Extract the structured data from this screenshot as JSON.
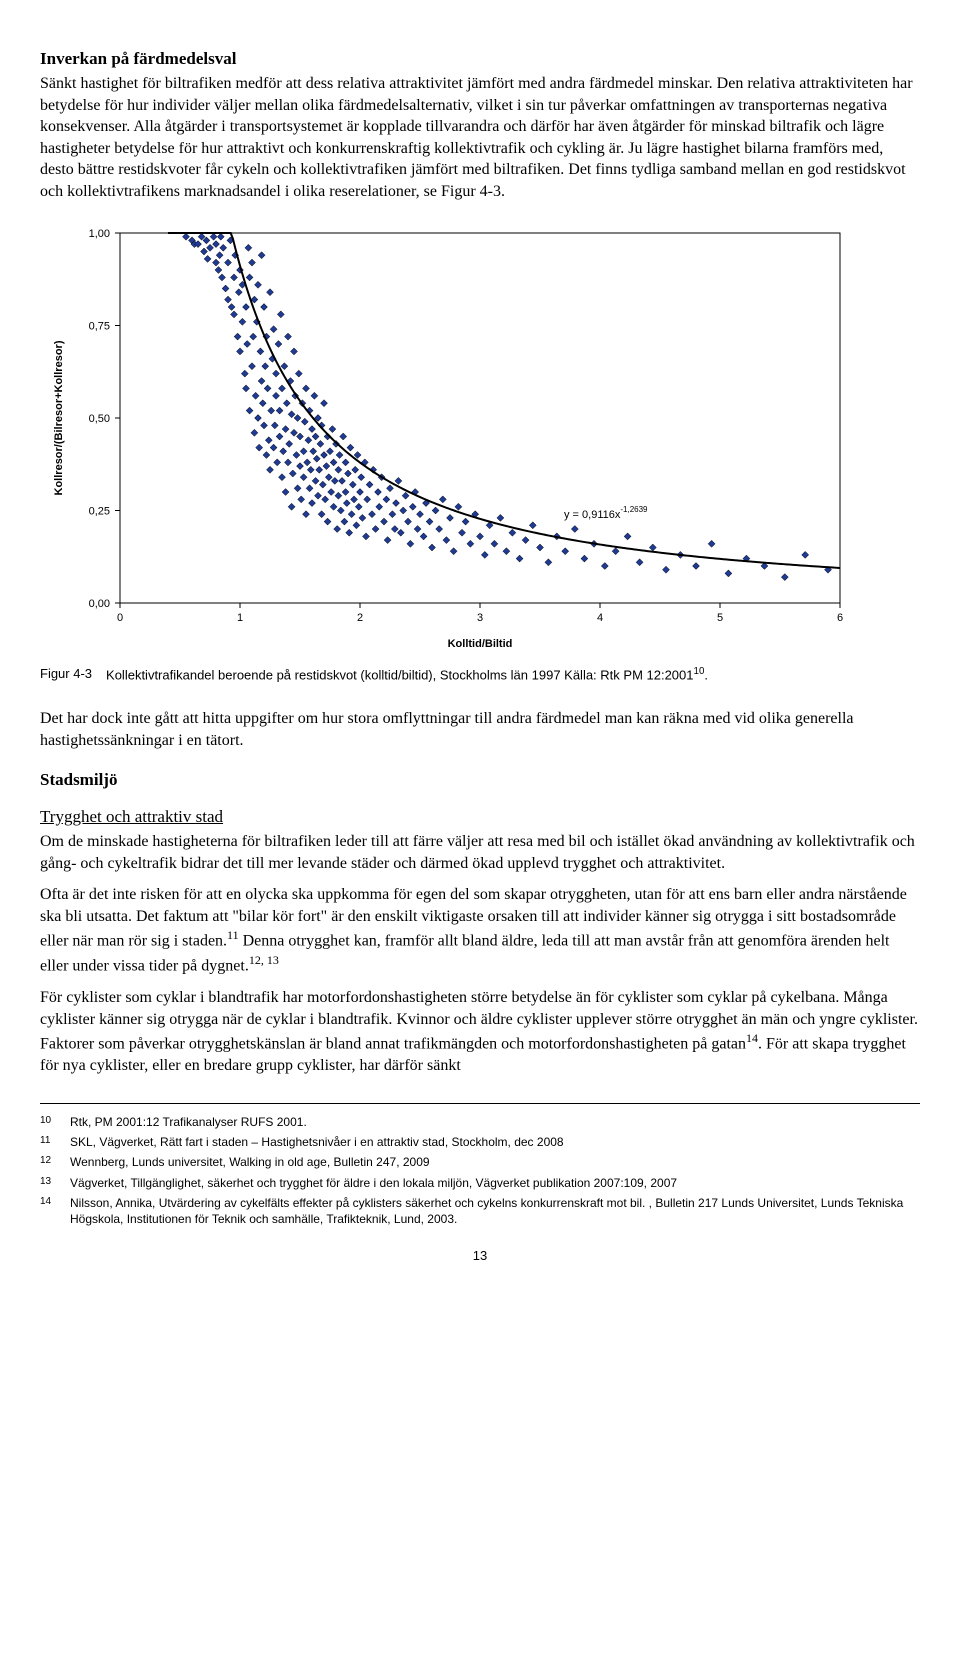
{
  "section1": {
    "heading": "Inverkan på färdmedelsval",
    "p1": "Sänkt hastighet för biltrafiken medför att dess relativa attraktivitet jämfört med andra färdmedel minskar. Den relativa attraktiviteten har betydelse för hur individer väljer mellan olika färdmedelsalternativ, vilket i sin tur påverkar omfattningen av transporternas negativa konsekvenser. Alla åtgärder i transportsystemet är kopplade tillvarandra och därför har även åtgärder för minskad biltrafik och lägre hastigheter betydelse för hur attraktivt och konkurrenskraftig kollektivtrafik och cykling är. Ju lägre hastighet bilarna framförs med, desto bättre restidskvoter får cykeln och kollektivtrafiken jämfört med biltrafiken. Det finns tydliga samband mellan en god restidskvot och kollektivtrafikens marknadsandel i olika reserelationer, se Figur 4-3."
  },
  "chart": {
    "type": "scatter",
    "xlabel": "Kolltid/Biltid",
    "ylabel": "Kollresor/(Bilresor+Kollresor)",
    "xlim": [
      0,
      6
    ],
    "ylim": [
      0,
      1.0
    ],
    "xticks": [
      0,
      1,
      2,
      3,
      4,
      5,
      6
    ],
    "yticks": [
      0.0,
      0.25,
      0.5,
      0.75,
      1.0
    ],
    "ytick_labels": [
      "0,00",
      "0,25",
      "0,50",
      "0,75",
      "1,00"
    ],
    "marker_color": "#1f3a93",
    "marker_border": "#000000",
    "curve_color": "#000000",
    "background": "#ffffff",
    "grid_color": "#d0d0d0",
    "label_fontsize": 11,
    "tick_fontsize": 11,
    "equation": "y = 0,9116x",
    "equation_exp": "-1,2639",
    "points": [
      [
        0.55,
        0.99
      ],
      [
        0.6,
        0.98
      ],
      [
        0.62,
        0.97
      ],
      [
        0.65,
        0.97
      ],
      [
        0.68,
        0.99
      ],
      [
        0.7,
        0.95
      ],
      [
        0.72,
        0.98
      ],
      [
        0.73,
        0.93
      ],
      [
        0.75,
        0.96
      ],
      [
        0.78,
        0.99
      ],
      [
        0.8,
        0.92
      ],
      [
        0.8,
        0.97
      ],
      [
        0.82,
        0.9
      ],
      [
        0.83,
        0.94
      ],
      [
        0.84,
        0.99
      ],
      [
        0.85,
        0.88
      ],
      [
        0.86,
        0.96
      ],
      [
        0.88,
        0.85
      ],
      [
        0.9,
        0.82
      ],
      [
        0.9,
        0.92
      ],
      [
        0.92,
        0.98
      ],
      [
        0.93,
        0.8
      ],
      [
        0.95,
        0.78
      ],
      [
        0.95,
        0.88
      ],
      [
        0.96,
        0.94
      ],
      [
        0.98,
        0.72
      ],
      [
        0.99,
        0.84
      ],
      [
        1.0,
        0.9
      ],
      [
        1.0,
        0.68
      ],
      [
        1.02,
        0.86
      ],
      [
        1.02,
        0.76
      ],
      [
        1.04,
        0.62
      ],
      [
        1.05,
        0.58
      ],
      [
        1.05,
        0.8
      ],
      [
        1.06,
        0.7
      ],
      [
        1.07,
        0.96
      ],
      [
        1.08,
        0.88
      ],
      [
        1.08,
        0.52
      ],
      [
        1.1,
        0.64
      ],
      [
        1.1,
        0.92
      ],
      [
        1.11,
        0.72
      ],
      [
        1.12,
        0.82
      ],
      [
        1.12,
        0.46
      ],
      [
        1.13,
        0.56
      ],
      [
        1.14,
        0.76
      ],
      [
        1.15,
        0.86
      ],
      [
        1.15,
        0.5
      ],
      [
        1.16,
        0.42
      ],
      [
        1.17,
        0.68
      ],
      [
        1.18,
        0.6
      ],
      [
        1.18,
        0.94
      ],
      [
        1.19,
        0.54
      ],
      [
        1.2,
        0.48
      ],
      [
        1.2,
        0.8
      ],
      [
        1.21,
        0.64
      ],
      [
        1.22,
        0.4
      ],
      [
        1.22,
        0.72
      ],
      [
        1.23,
        0.58
      ],
      [
        1.24,
        0.44
      ],
      [
        1.25,
        0.84
      ],
      [
        1.25,
        0.36
      ],
      [
        1.26,
        0.52
      ],
      [
        1.27,
        0.66
      ],
      [
        1.28,
        0.74
      ],
      [
        1.28,
        0.42
      ],
      [
        1.29,
        0.48
      ],
      [
        1.3,
        0.56
      ],
      [
        1.3,
        0.62
      ],
      [
        1.31,
        0.38
      ],
      [
        1.32,
        0.7
      ],
      [
        1.33,
        0.45
      ],
      [
        1.33,
        0.52
      ],
      [
        1.34,
        0.78
      ],
      [
        1.35,
        0.34
      ],
      [
        1.35,
        0.58
      ],
      [
        1.36,
        0.41
      ],
      [
        1.37,
        0.64
      ],
      [
        1.38,
        0.3
      ],
      [
        1.38,
        0.47
      ],
      [
        1.39,
        0.54
      ],
      [
        1.4,
        0.72
      ],
      [
        1.4,
        0.38
      ],
      [
        1.41,
        0.43
      ],
      [
        1.42,
        0.6
      ],
      [
        1.43,
        0.26
      ],
      [
        1.43,
        0.51
      ],
      [
        1.44,
        0.35
      ],
      [
        1.45,
        0.68
      ],
      [
        1.45,
        0.46
      ],
      [
        1.46,
        0.56
      ],
      [
        1.47,
        0.4
      ],
      [
        1.48,
        0.31
      ],
      [
        1.48,
        0.5
      ],
      [
        1.49,
        0.62
      ],
      [
        1.5,
        0.37
      ],
      [
        1.5,
        0.45
      ],
      [
        1.51,
        0.28
      ],
      [
        1.52,
        0.54
      ],
      [
        1.53,
        0.41
      ],
      [
        1.53,
        0.34
      ],
      [
        1.54,
        0.49
      ],
      [
        1.55,
        0.58
      ],
      [
        1.55,
        0.24
      ],
      [
        1.56,
        0.38
      ],
      [
        1.57,
        0.44
      ],
      [
        1.58,
        0.31
      ],
      [
        1.58,
        0.52
      ],
      [
        1.59,
        0.36
      ],
      [
        1.6,
        0.47
      ],
      [
        1.6,
        0.27
      ],
      [
        1.61,
        0.41
      ],
      [
        1.62,
        0.56
      ],
      [
        1.63,
        0.33
      ],
      [
        1.63,
        0.45
      ],
      [
        1.64,
        0.39
      ],
      [
        1.65,
        0.29
      ],
      [
        1.65,
        0.5
      ],
      [
        1.66,
        0.36
      ],
      [
        1.67,
        0.43
      ],
      [
        1.68,
        0.24
      ],
      [
        1.68,
        0.48
      ],
      [
        1.69,
        0.32
      ],
      [
        1.7,
        0.4
      ],
      [
        1.7,
        0.54
      ],
      [
        1.71,
        0.28
      ],
      [
        1.72,
        0.37
      ],
      [
        1.73,
        0.45
      ],
      [
        1.73,
        0.22
      ],
      [
        1.74,
        0.34
      ],
      [
        1.75,
        0.41
      ],
      [
        1.76,
        0.3
      ],
      [
        1.77,
        0.47
      ],
      [
        1.78,
        0.26
      ],
      [
        1.78,
        0.38
      ],
      [
        1.79,
        0.33
      ],
      [
        1.8,
        0.43
      ],
      [
        1.81,
        0.2
      ],
      [
        1.82,
        0.29
      ],
      [
        1.82,
        0.36
      ],
      [
        1.83,
        0.4
      ],
      [
        1.84,
        0.25
      ],
      [
        1.85,
        0.33
      ],
      [
        1.86,
        0.45
      ],
      [
        1.87,
        0.22
      ],
      [
        1.88,
        0.3
      ],
      [
        1.88,
        0.38
      ],
      [
        1.89,
        0.27
      ],
      [
        1.9,
        0.35
      ],
      [
        1.91,
        0.19
      ],
      [
        1.92,
        0.42
      ],
      [
        1.93,
        0.24
      ],
      [
        1.94,
        0.32
      ],
      [
        1.95,
        0.28
      ],
      [
        1.96,
        0.36
      ],
      [
        1.97,
        0.21
      ],
      [
        1.98,
        0.4
      ],
      [
        1.99,
        0.26
      ],
      [
        2.0,
        0.3
      ],
      [
        2.01,
        0.34
      ],
      [
        2.02,
        0.23
      ],
      [
        2.04,
        0.38
      ],
      [
        2.05,
        0.18
      ],
      [
        2.06,
        0.28
      ],
      [
        2.08,
        0.32
      ],
      [
        2.1,
        0.24
      ],
      [
        2.11,
        0.36
      ],
      [
        2.13,
        0.2
      ],
      [
        2.15,
        0.3
      ],
      [
        2.16,
        0.26
      ],
      [
        2.18,
        0.34
      ],
      [
        2.2,
        0.22
      ],
      [
        2.22,
        0.28
      ],
      [
        2.23,
        0.17
      ],
      [
        2.25,
        0.31
      ],
      [
        2.27,
        0.24
      ],
      [
        2.29,
        0.2
      ],
      [
        2.3,
        0.27
      ],
      [
        2.32,
        0.33
      ],
      [
        2.34,
        0.19
      ],
      [
        2.36,
        0.25
      ],
      [
        2.38,
        0.29
      ],
      [
        2.4,
        0.22
      ],
      [
        2.42,
        0.16
      ],
      [
        2.44,
        0.26
      ],
      [
        2.46,
        0.3
      ],
      [
        2.48,
        0.2
      ],
      [
        2.5,
        0.24
      ],
      [
        2.53,
        0.18
      ],
      [
        2.55,
        0.27
      ],
      [
        2.58,
        0.22
      ],
      [
        2.6,
        0.15
      ],
      [
        2.63,
        0.25
      ],
      [
        2.66,
        0.2
      ],
      [
        2.69,
        0.28
      ],
      [
        2.72,
        0.17
      ],
      [
        2.75,
        0.23
      ],
      [
        2.78,
        0.14
      ],
      [
        2.82,
        0.26
      ],
      [
        2.85,
        0.19
      ],
      [
        2.88,
        0.22
      ],
      [
        2.92,
        0.16
      ],
      [
        2.96,
        0.24
      ],
      [
        3.0,
        0.18
      ],
      [
        3.04,
        0.13
      ],
      [
        3.08,
        0.21
      ],
      [
        3.12,
        0.16
      ],
      [
        3.17,
        0.23
      ],
      [
        3.22,
        0.14
      ],
      [
        3.27,
        0.19
      ],
      [
        3.33,
        0.12
      ],
      [
        3.38,
        0.17
      ],
      [
        3.44,
        0.21
      ],
      [
        3.5,
        0.15
      ],
      [
        3.57,
        0.11
      ],
      [
        3.64,
        0.18
      ],
      [
        3.71,
        0.14
      ],
      [
        3.79,
        0.2
      ],
      [
        3.87,
        0.12
      ],
      [
        3.95,
        0.16
      ],
      [
        4.04,
        0.1
      ],
      [
        4.13,
        0.14
      ],
      [
        4.23,
        0.18
      ],
      [
        4.33,
        0.11
      ],
      [
        4.44,
        0.15
      ],
      [
        4.55,
        0.09
      ],
      [
        4.67,
        0.13
      ],
      [
        4.8,
        0.1
      ],
      [
        4.93,
        0.16
      ],
      [
        5.07,
        0.08
      ],
      [
        5.22,
        0.12
      ],
      [
        5.37,
        0.1
      ],
      [
        5.54,
        0.07
      ],
      [
        5.71,
        0.13
      ],
      [
        5.9,
        0.09
      ]
    ],
    "curve_formula_a": 0.9116,
    "curve_formula_b": -1.2639
  },
  "caption": {
    "label": "Figur 4-3",
    "text": "Kollektivtrafikandel beroende på restidskvot (kolltid/biltid), Stockholms län 1997 Källa: Rtk PM 12:2001",
    "sup": "10"
  },
  "after_chart_p": "Det har dock inte gått att hitta uppgifter om hur stora omflyttningar till andra färdmedel man kan räkna med vid olika generella hastighetssänkningar i en tätort.",
  "section2": {
    "heading": "Stadsmiljö",
    "sub1": "Trygghet och attraktiv stad",
    "p1a": "Om de minskade hastigheterna för biltrafiken leder till att färre väljer att resa med bil och istället ökad användning av kollektivtrafik och gång- och cykeltrafik bidrar det till mer levande städer och därmed ökad upplevd trygghet och attraktivitet.",
    "p1b_pre": "Ofta är det inte risken för att en olycka ska uppkomma för egen del som skapar otryggheten, utan för att ens barn eller andra närstående ska bli utsatta. Det faktum att \"bilar kör fort\" är den enskilt viktigaste orsaken till att individer känner sig otrygga i sitt bostadsområde eller när man rör sig i staden.",
    "p1b_sup1": "11",
    "p1b_mid": " Denna otrygghet kan, framför allt bland äldre, leda till att man avstår från att genomföra ärenden helt eller under vissa tider på dygnet.",
    "p1b_sup2": "12, 13",
    "p2_pre": "För cyklister som cyklar i blandtrafik har motorfordonshastigheten större betydelse än för cyklister som cyklar på cykelbana. Många cyklister känner sig otrygga när de cyklar i blandtrafik. Kvinnor och äldre cyklister upplever större otrygghet än män och yngre cyklister. Faktorer som påverkar otrygghetskänslan är bland annat trafikmängden och motorfordonshastigheten på gatan",
    "p2_sup": "14",
    "p2_post": ". För att skapa trygghet för nya cyklister, eller en bredare grupp cyklister, har därför sänkt"
  },
  "footnotes": [
    {
      "num": "10",
      "text": "Rtk, PM 2001:12 Trafikanalyser RUFS 2001."
    },
    {
      "num": "11",
      "text": "SKL, Vägverket, Rätt fart i staden – Hastighetsnivåer i en attraktiv stad, Stockholm, dec 2008"
    },
    {
      "num": "12",
      "text": "Wennberg, Lunds universitet, Walking in old age, Bulletin 247, 2009"
    },
    {
      "num": "13",
      "text": "Vägverket, Tillgänglighet, säkerhet och trygghet för äldre i den lokala miljön, Vägverket publikation 2007:109, 2007"
    },
    {
      "num": "14",
      "text": "Nilsson, Annika, Utvärdering av cykelfälts effekter på cyklisters säkerhet och cykelns konkurrenskraft mot bil. , Bulletin 217 Lunds Universitet, Lunds Tekniska Högskola, Institutionen för Teknik och samhälle, Trafikteknik, Lund, 2003."
    }
  ],
  "page_number": "13"
}
